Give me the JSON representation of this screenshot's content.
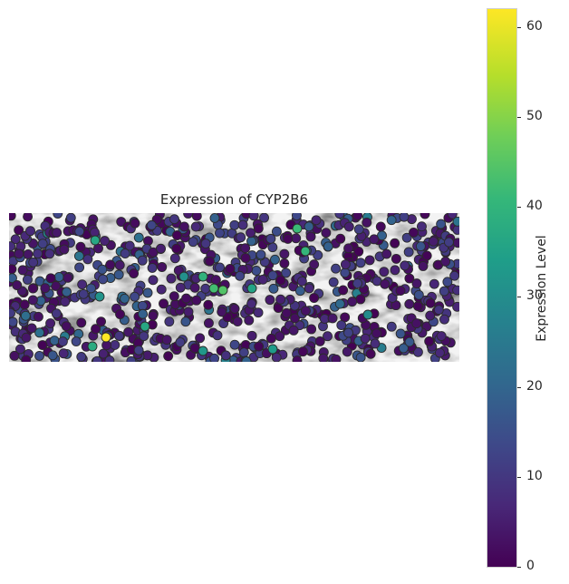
{
  "chart_data": {
    "type": "scatter",
    "title": "Expression of CYP2B6",
    "background": "grayscale tissue image",
    "colormap": "viridis",
    "colorbar": {
      "label": "Expression Level",
      "range": [
        0,
        62
      ],
      "ticks": [
        0,
        10,
        20,
        30,
        40,
        50,
        60
      ]
    },
    "highlighted_points": [
      {
        "x": 107,
        "y": 137,
        "value": 62
      },
      {
        "x": 236,
        "y": 85,
        "value": 45
      },
      {
        "x": 226,
        "y": 83,
        "value": 43
      },
      {
        "x": 318,
        "y": 17,
        "value": 42
      },
      {
        "x": 327,
        "y": 42,
        "value": 41
      },
      {
        "x": 214,
        "y": 70,
        "value": 40
      },
      {
        "x": 92,
        "y": 147,
        "value": 38
      },
      {
        "x": 95,
        "y": 30,
        "value": 37
      },
      {
        "x": 150,
        "y": 125,
        "value": 37
      },
      {
        "x": 268,
        "y": 83,
        "value": 36
      },
      {
        "x": 291,
        "y": 150,
        "value": 34
      },
      {
        "x": 100,
        "y": 92,
        "value": 32
      },
      {
        "x": 214,
        "y": 152,
        "value": 33
      },
      {
        "x": 193,
        "y": 70,
        "value": 31
      },
      {
        "x": 396,
        "y": 112,
        "value": 30
      }
    ],
    "point_count_approx": 900
  }
}
